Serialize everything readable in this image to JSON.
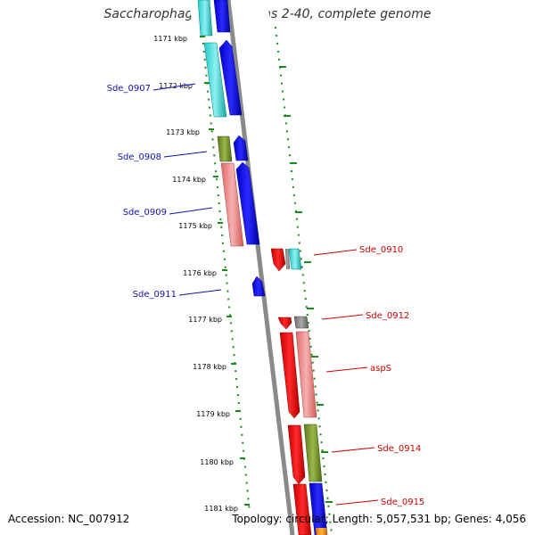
{
  "title": "Saccharophagus degradans 2-40, complete genome",
  "footer": {
    "accession": "Accession: NC_007912",
    "summary": "Topology: circular; Length: 5,057,531 bp; Genes: 4,056"
  },
  "colors": {
    "backbone": "#888888",
    "tick": "#1a8a1a",
    "forward_label": "#1010b0",
    "reverse_label": "#cc0000"
  },
  "ticks": [
    "1171 kbp",
    "1172 kbp",
    "1173 kbp",
    "1174 kbp",
    "1175 kbp",
    "1176 kbp",
    "1177 kbp",
    "1178 kbp",
    "1179 kbp",
    "1180 kbp",
    "1181 kbp"
  ],
  "forward_labels": [
    "Sde_0907",
    "Sde_0908",
    "Sde_0909",
    "Sde_0911"
  ],
  "reverse_labels": [
    "Sde_0910",
    "Sde_0912",
    "aspS",
    "Sde_0914",
    "Sde_0915"
  ]
}
